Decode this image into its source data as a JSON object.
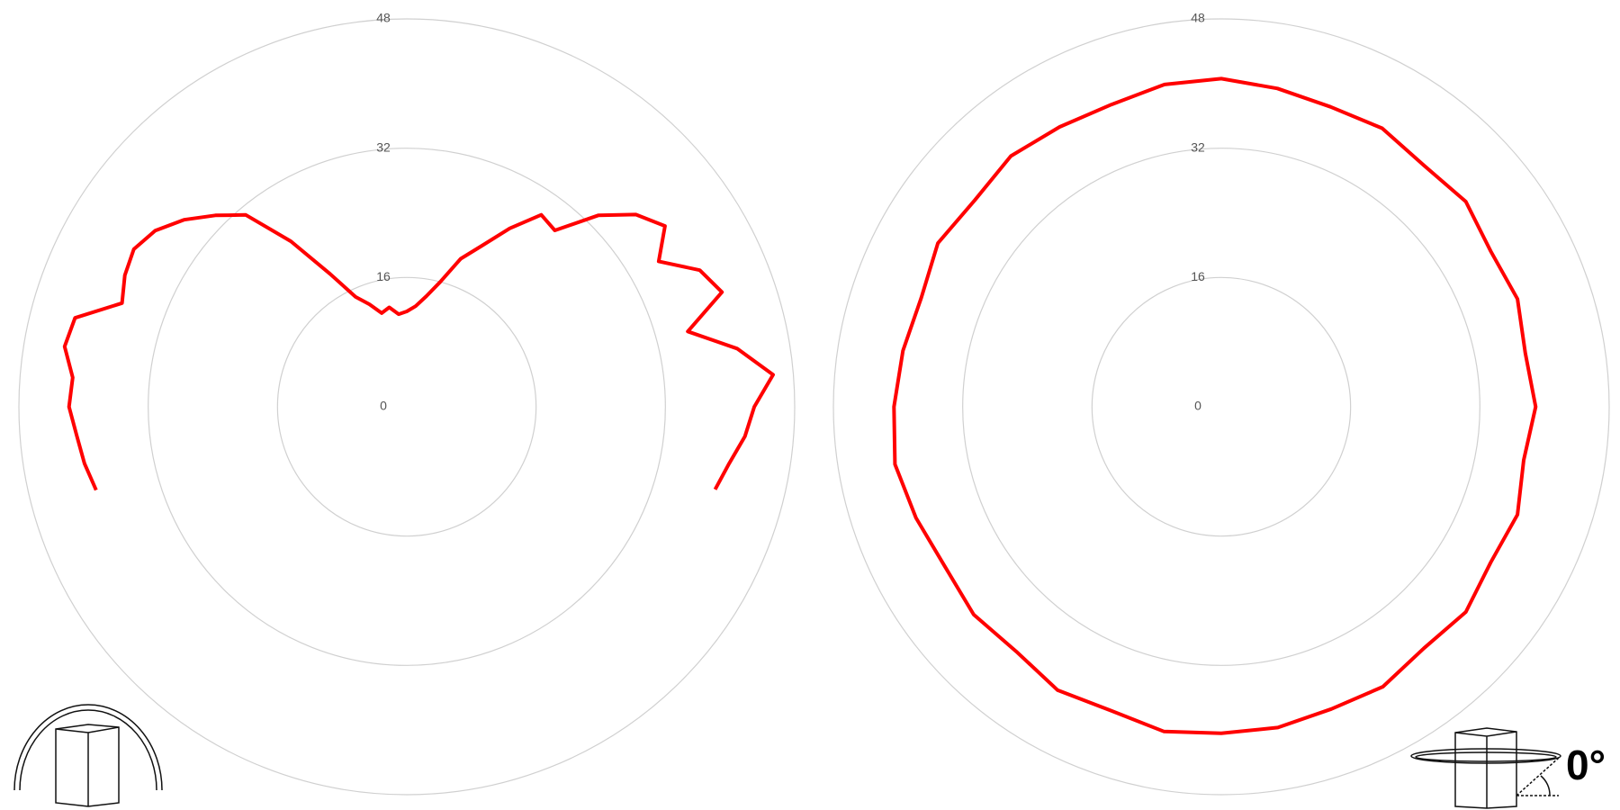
{
  "chart_data": [
    {
      "type": "polar",
      "rlim": [
        0,
        48
      ],
      "rticks": [
        0,
        16,
        32,
        48
      ],
      "grid": true,
      "color": "#ff0000",
      "theta": [
        -105,
        -100,
        -95,
        -90,
        -85,
        -80,
        -75,
        -70,
        -65,
        -60,
        -55,
        -50,
        -45,
        -40,
        -35,
        -30,
        -25,
        -20,
        -15,
        -10,
        -5,
        0,
        5,
        10,
        15,
        20,
        25,
        30,
        35,
        40,
        45,
        50,
        55,
        60,
        65,
        70,
        75,
        80,
        85,
        90,
        95,
        100,
        105
      ],
      "values": [
        39.8,
        40.5,
        41.0,
        41.8,
        41.5,
        43.0,
        42.5,
        37.5,
        38.5,
        39.0,
        38.0,
        36.0,
        33.5,
        31.0,
        25.0,
        19.0,
        15.0,
        13.5,
        12.0,
        12.5,
        11.5,
        11.8,
        12.5,
        13.9,
        16.0,
        19.5,
        22.0,
        25.5,
        29.0,
        28.5,
        33.5,
        37.0,
        39.0,
        36.0,
        40.0,
        41.5,
        36.0,
        41.5,
        45.5,
        43.0,
        42.0,
        40.5,
        39.5
      ]
    },
    {
      "type": "polar",
      "rlim": [
        0,
        48
      ],
      "rticks": [
        0,
        16,
        32,
        48
      ],
      "grid": true,
      "color": "#ff0000",
      "theta": [
        0,
        10,
        20,
        30,
        40,
        50,
        60,
        70,
        80,
        90,
        100,
        110,
        120,
        130,
        140,
        150,
        160,
        170,
        180,
        190,
        200,
        210,
        220,
        230,
        240,
        250,
        260,
        270,
        280,
        290,
        300,
        310,
        320,
        330,
        340,
        350
      ],
      "values": [
        40.6,
        40.0,
        39.5,
        39.8,
        39.0,
        39.5,
        38.5,
        39.0,
        38.2,
        38.9,
        38.0,
        39.0,
        38.5,
        39.5,
        39.0,
        40.0,
        39.8,
        40.3,
        40.4,
        40.8,
        40.0,
        40.5,
        39.5,
        40.0,
        39.5,
        40.2,
        41.0,
        40.5,
        40.0,
        39.5,
        40.5,
        39.8,
        40.5,
        40.0,
        39.8,
        40.5
      ],
      "annotation": "0°"
    }
  ]
}
